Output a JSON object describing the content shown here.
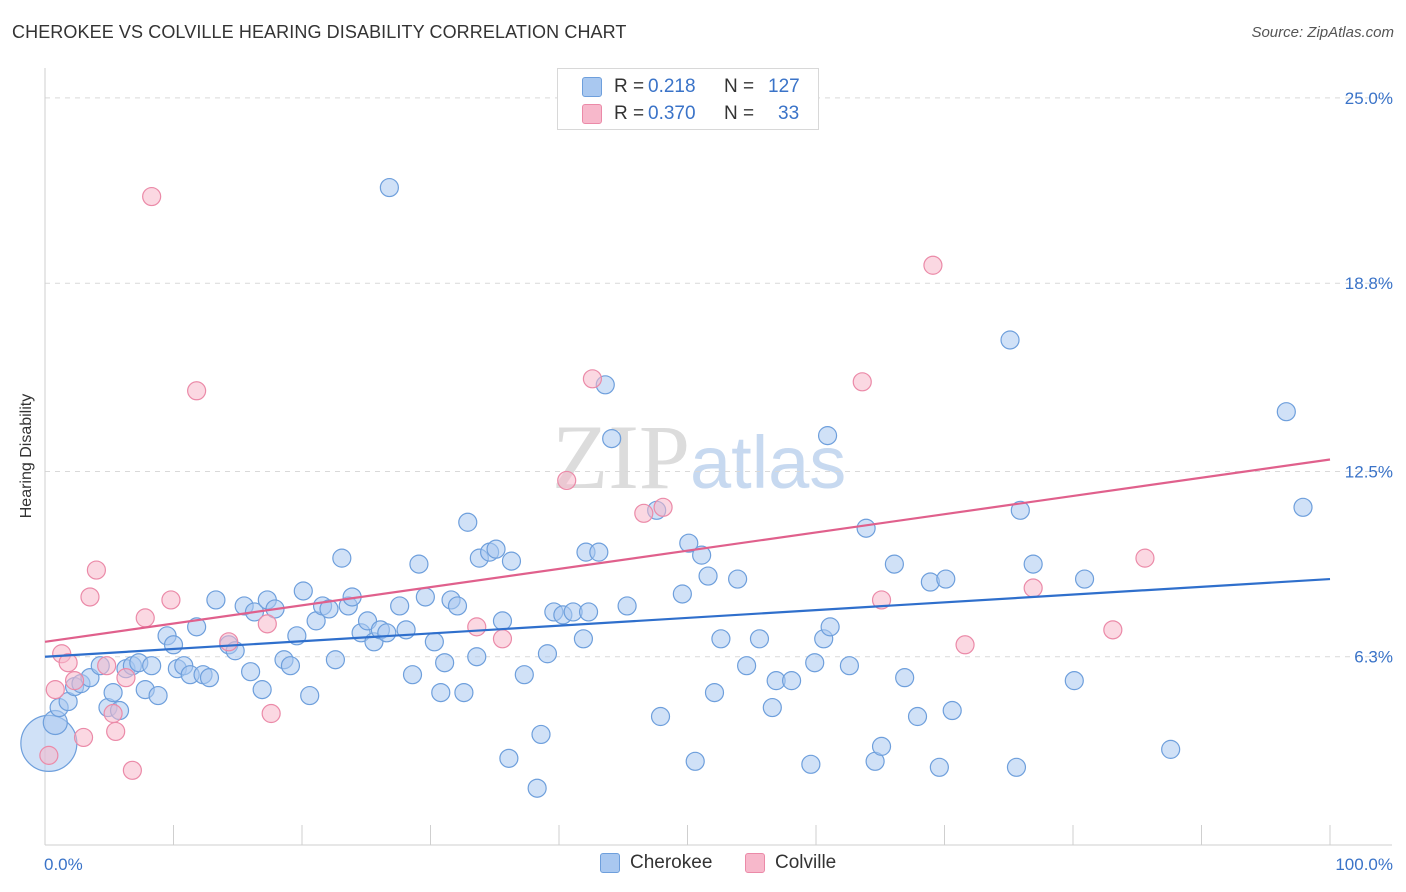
{
  "header": {
    "title": "CHEROKEE VS COLVILLE HEARING DISABILITY CORRELATION CHART",
    "source": "Source: ZipAtlas.com"
  },
  "watermark": {
    "zip": "ZIP",
    "atlas": "atlas"
  },
  "legend": {
    "series": [
      {
        "r_label": "R =",
        "r_value": "0.218",
        "n_label": "N =",
        "n_value": "127"
      },
      {
        "r_label": "R =",
        "r_value": "0.370",
        "n_label": "N =",
        "n_value": "33"
      }
    ],
    "bottom": [
      "Cherokee",
      "Colville"
    ]
  },
  "colors": {
    "cherokee_fill": "#a9c8f0",
    "cherokee_stroke": "#6e9fdc",
    "cherokee_line": "#2f6fcc",
    "colville_fill": "#f7b8cb",
    "colville_stroke": "#eb8aa8",
    "colville_line": "#e0608c",
    "tick_label": "#3a73c8",
    "grid": "#d9d9d9"
  },
  "chart_data": {
    "type": "scatter",
    "title": "CHEROKEE VS COLVILLE HEARING DISABILITY CORRELATION CHART",
    "xlabel": "",
    "ylabel": "Hearing Disability",
    "xlim": [
      0,
      100
    ],
    "ylim": [
      0,
      25.6
    ],
    "x_tick_labels": [
      {
        "value": 0,
        "label": "0.0%"
      },
      {
        "value": 100,
        "label": "100.0%"
      }
    ],
    "y_tick_labels": [
      {
        "value": 6.3,
        "label": "6.3%"
      },
      {
        "value": 12.5,
        "label": "12.5%"
      },
      {
        "value": 18.8,
        "label": "18.8%"
      },
      {
        "value": 25.0,
        "label": "25.0%"
      }
    ],
    "grid": true,
    "series": [
      {
        "name": "Cherokee",
        "r": 0.218,
        "n": 127,
        "trend": {
          "x": [
            0,
            100
          ],
          "y": [
            6.3,
            8.9
          ]
        },
        "points": [
          [
            0.3,
            3.4,
            28
          ],
          [
            0.8,
            4.1,
            12
          ],
          [
            1.1,
            4.6,
            9
          ],
          [
            1.8,
            4.8,
            9
          ],
          [
            2.3,
            5.3,
            9
          ],
          [
            2.8,
            5.4,
            9
          ],
          [
            3.5,
            5.6,
            9
          ],
          [
            4.3,
            6.0,
            9
          ],
          [
            4.9,
            4.6,
            9
          ],
          [
            5.3,
            5.1,
            9
          ],
          [
            5.8,
            4.5,
            9
          ],
          [
            6.3,
            5.9,
            9
          ],
          [
            6.8,
            6.0,
            9
          ],
          [
            7.3,
            6.1,
            9
          ],
          [
            7.8,
            5.2,
            9
          ],
          [
            8.3,
            6.0,
            9
          ],
          [
            8.8,
            5.0,
            9
          ],
          [
            9.5,
            7.0,
            9
          ],
          [
            10.0,
            6.7,
            9
          ],
          [
            10.3,
            5.9,
            9
          ],
          [
            10.8,
            6.0,
            9
          ],
          [
            11.3,
            5.7,
            9
          ],
          [
            11.8,
            7.3,
            9
          ],
          [
            12.3,
            5.7,
            9
          ],
          [
            12.8,
            5.6,
            9
          ],
          [
            13.3,
            8.2,
            9
          ],
          [
            14.3,
            6.7,
            9
          ],
          [
            14.8,
            6.5,
            9
          ],
          [
            15.5,
            8.0,
            9
          ],
          [
            16.0,
            5.8,
            9
          ],
          [
            16.3,
            7.8,
            9
          ],
          [
            16.9,
            5.2,
            9
          ],
          [
            17.3,
            8.2,
            9
          ],
          [
            17.9,
            7.9,
            9
          ],
          [
            18.6,
            6.2,
            9
          ],
          [
            19.1,
            6.0,
            9
          ],
          [
            19.6,
            7.0,
            9
          ],
          [
            20.1,
            8.5,
            9
          ],
          [
            20.6,
            5.0,
            9
          ],
          [
            21.1,
            7.5,
            9
          ],
          [
            21.6,
            8.0,
            9
          ],
          [
            22.1,
            7.9,
            9
          ],
          [
            22.6,
            6.2,
            9
          ],
          [
            23.1,
            9.6,
            9
          ],
          [
            23.6,
            8.0,
            9
          ],
          [
            23.9,
            8.3,
            9
          ],
          [
            24.6,
            7.1,
            9
          ],
          [
            25.1,
            7.5,
            9
          ],
          [
            25.6,
            6.8,
            9
          ],
          [
            26.1,
            7.2,
            9
          ],
          [
            26.6,
            7.1,
            9
          ],
          [
            26.8,
            22.0,
            9
          ],
          [
            27.6,
            8.0,
            9
          ],
          [
            28.1,
            7.2,
            9
          ],
          [
            28.6,
            5.7,
            9
          ],
          [
            29.1,
            9.4,
            9
          ],
          [
            29.6,
            8.3,
            9
          ],
          [
            30.3,
            6.8,
            9
          ],
          [
            30.8,
            5.1,
            9
          ],
          [
            31.1,
            6.1,
            9
          ],
          [
            31.6,
            8.2,
            9
          ],
          [
            32.1,
            8.0,
            9
          ],
          [
            32.6,
            5.1,
            9
          ],
          [
            32.9,
            10.8,
            9
          ],
          [
            33.6,
            6.3,
            9
          ],
          [
            33.8,
            9.6,
            9
          ],
          [
            34.6,
            9.8,
            9
          ],
          [
            35.1,
            9.9,
            9
          ],
          [
            35.6,
            7.5,
            9
          ],
          [
            36.1,
            2.9,
            9
          ],
          [
            36.3,
            9.5,
            9
          ],
          [
            37.3,
            5.7,
            9
          ],
          [
            38.3,
            1.9,
            9
          ],
          [
            38.6,
            3.7,
            9
          ],
          [
            39.1,
            6.4,
            9
          ],
          [
            39.6,
            7.8,
            9
          ],
          [
            40.3,
            7.7,
            9
          ],
          [
            41.1,
            7.8,
            9
          ],
          [
            41.9,
            6.9,
            9
          ],
          [
            42.1,
            9.8,
            9
          ],
          [
            42.3,
            7.8,
            9
          ],
          [
            43.1,
            9.8,
            9
          ],
          [
            43.6,
            15.4,
            9
          ],
          [
            44.1,
            13.6,
            9
          ],
          [
            45.3,
            8.0,
            9
          ],
          [
            47.6,
            11.2,
            9
          ],
          [
            47.9,
            4.3,
            9
          ],
          [
            49.6,
            8.4,
            9
          ],
          [
            50.1,
            10.1,
            9
          ],
          [
            50.6,
            2.8,
            9
          ],
          [
            51.1,
            9.7,
            9
          ],
          [
            51.6,
            9.0,
            9
          ],
          [
            52.1,
            5.1,
            9
          ],
          [
            52.6,
            6.9,
            9
          ],
          [
            53.9,
            8.9,
            9
          ],
          [
            54.6,
            6.0,
            9
          ],
          [
            55.6,
            6.9,
            9
          ],
          [
            56.6,
            4.6,
            9
          ],
          [
            56.9,
            5.5,
            9
          ],
          [
            58.1,
            5.5,
            9
          ],
          [
            59.6,
            2.7,
            9
          ],
          [
            59.9,
            6.1,
            9
          ],
          [
            60.6,
            6.9,
            9
          ],
          [
            60.9,
            13.7,
            9
          ],
          [
            61.1,
            7.3,
            9
          ],
          [
            62.6,
            6.0,
            9
          ],
          [
            63.9,
            10.6,
            9
          ],
          [
            64.6,
            2.8,
            9
          ],
          [
            65.1,
            3.3,
            9
          ],
          [
            66.1,
            9.4,
            9
          ],
          [
            66.9,
            5.6,
            9
          ],
          [
            67.9,
            4.3,
            9
          ],
          [
            68.9,
            8.8,
            9
          ],
          [
            69.6,
            2.6,
            9
          ],
          [
            70.1,
            8.9,
            9
          ],
          [
            70.6,
            4.5,
            9
          ],
          [
            75.1,
            16.9,
            9
          ],
          [
            75.6,
            2.6,
            9
          ],
          [
            75.9,
            11.2,
            9
          ],
          [
            76.9,
            9.4,
            9
          ],
          [
            80.1,
            5.5,
            9
          ],
          [
            80.9,
            8.9,
            9
          ],
          [
            96.6,
            14.5,
            9
          ],
          [
            87.6,
            3.2,
            9
          ],
          [
            97.9,
            11.3,
            9
          ]
        ]
      },
      {
        "name": "Colville",
        "r": 0.37,
        "n": 33,
        "trend": {
          "x": [
            0,
            100
          ],
          "y": [
            6.8,
            12.9
          ]
        },
        "points": [
          [
            0.3,
            3.0,
            9
          ],
          [
            0.8,
            5.2,
            9
          ],
          [
            1.3,
            6.4,
            9
          ],
          [
            1.8,
            6.1,
            9
          ],
          [
            2.3,
            5.5,
            9
          ],
          [
            3.0,
            3.6,
            9
          ],
          [
            3.5,
            8.3,
            9
          ],
          [
            4.0,
            9.2,
            9
          ],
          [
            4.8,
            6.0,
            9
          ],
          [
            5.3,
            4.4,
            9
          ],
          [
            5.5,
            3.8,
            9
          ],
          [
            6.3,
            5.6,
            9
          ],
          [
            6.8,
            2.5,
            9
          ],
          [
            7.8,
            7.6,
            9
          ],
          [
            8.3,
            21.7,
            9
          ],
          [
            9.8,
            8.2,
            9
          ],
          [
            11.8,
            15.2,
            9
          ],
          [
            14.3,
            6.8,
            9
          ],
          [
            17.3,
            7.4,
            9
          ],
          [
            17.6,
            4.4,
            9
          ],
          [
            33.6,
            7.3,
            9
          ],
          [
            35.6,
            6.9,
            9
          ],
          [
            40.6,
            12.2,
            9
          ],
          [
            42.6,
            15.6,
            9
          ],
          [
            46.6,
            11.1,
            9
          ],
          [
            48.1,
            11.3,
            9
          ],
          [
            63.6,
            15.5,
            9
          ],
          [
            65.1,
            8.2,
            9
          ],
          [
            69.1,
            19.4,
            9
          ],
          [
            71.6,
            6.7,
            9
          ],
          [
            76.9,
            8.6,
            9
          ],
          [
            83.1,
            7.2,
            9
          ],
          [
            85.6,
            9.6,
            9
          ]
        ]
      }
    ]
  }
}
